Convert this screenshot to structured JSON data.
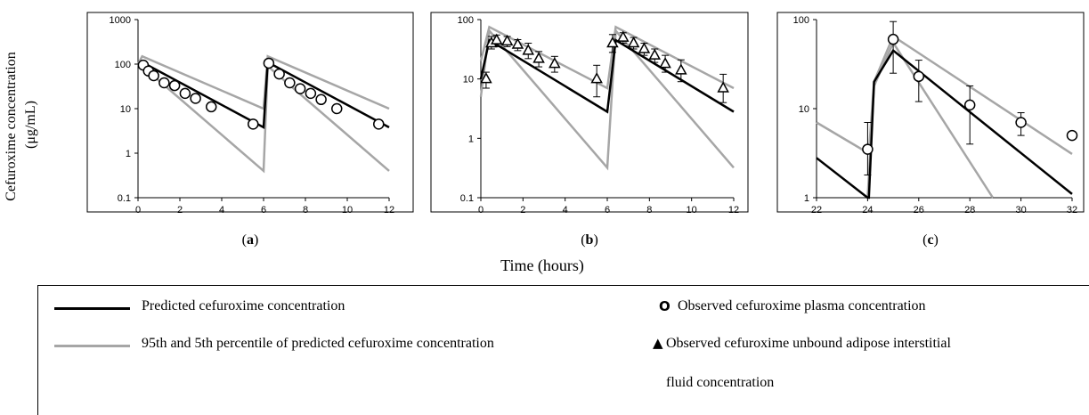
{
  "figure": {
    "y_axis_label_line1": "Cefuroxime concentration",
    "y_axis_label_line2": "(μg/mL)",
    "x_axis_label": "Time (hours)"
  },
  "legend": {
    "predicted": "Predicted cefuroxime concentration",
    "percentile": "95th and 5th percentile of predicted cefuroxime concentration",
    "plasma": "Observed cefuroxime plasma concentration",
    "adipose_line1": "Observed cefuroxime unbound adipose interstitial",
    "adipose_line2": "fluid concentration",
    "colors": {
      "predicted": "#000000",
      "percentile": "#a6a6a6"
    },
    "symbols": {
      "plasma": "circle",
      "adipose": "triangle"
    }
  },
  "chart_data": [
    {
      "type": "line",
      "panel_label": "a",
      "yscale": "log",
      "xlim": [
        0,
        12
      ],
      "ylim": [
        0.1,
        1000
      ],
      "x_ticks": [
        "0",
        "2",
        "4",
        "6",
        "8",
        "10",
        "12"
      ],
      "y_ticks": [
        "0.1",
        "1",
        "10",
        "100",
        "1000"
      ],
      "series": [
        {
          "style": "predicted",
          "points": [
            [
              0,
              100
            ],
            [
              0.2,
              110
            ],
            [
              6,
              3.8
            ],
            [
              6.2,
              110
            ],
            [
              12,
              3.8
            ]
          ]
        },
        {
          "style": "percentile",
          "points": [
            [
              0,
              100
            ],
            [
              0.2,
              150
            ],
            [
              6,
              10
            ],
            [
              6.2,
              150
            ],
            [
              12,
              10
            ]
          ]
        },
        {
          "style": "percentile",
          "points": [
            [
              0,
              100
            ],
            [
              0.2,
              90
            ],
            [
              6,
              0.4
            ],
            [
              6.2,
              90
            ],
            [
              12,
              0.4
            ]
          ]
        },
        {
          "style": "plasma",
          "points": [
            [
              0.25,
              95
            ],
            [
              0.5,
              70
            ],
            [
              0.75,
              55
            ],
            [
              1.25,
              38
            ],
            [
              1.75,
              33
            ],
            [
              2.25,
              22
            ],
            [
              2.75,
              17
            ],
            [
              3.5,
              11
            ],
            [
              5.5,
              4.5
            ],
            [
              6.25,
              105
            ],
            [
              6.75,
              60
            ],
            [
              7.25,
              38
            ],
            [
              7.75,
              28
            ],
            [
              8.25,
              22
            ],
            [
              8.75,
              16
            ],
            [
              9.5,
              10
            ],
            [
              11.5,
              4.5
            ]
          ]
        }
      ]
    },
    {
      "type": "line",
      "panel_label": "b",
      "yscale": "log",
      "xlim": [
        0,
        12
      ],
      "ylim": [
        0.1,
        100
      ],
      "x_ticks": [
        "0",
        "2",
        "4",
        "6",
        "8",
        "10",
        "12"
      ],
      "y_ticks": [
        "0.1",
        "1",
        "10",
        "100"
      ],
      "series": [
        {
          "style": "predicted",
          "points": [
            [
              0,
              10
            ],
            [
              0.4,
              45
            ],
            [
              6,
              2.8
            ],
            [
              6.4,
              45
            ],
            [
              12,
              2.8
            ]
          ]
        },
        {
          "style": "percentile",
          "points": [
            [
              0,
              20
            ],
            [
              0.4,
              75
            ],
            [
              6,
              7
            ],
            [
              6.4,
              75
            ],
            [
              12,
              7
            ]
          ]
        },
        {
          "style": "percentile",
          "points": [
            [
              0,
              5
            ],
            [
              0.4,
              65
            ],
            [
              6,
              0.32
            ],
            [
              6.4,
              65
            ],
            [
              12,
              0.32
            ]
          ]
        },
        {
          "style": "adipose",
          "points": [
            [
              0.25,
              10
            ],
            [
              0.5,
              40
            ],
            [
              0.75,
              45
            ],
            [
              1.25,
              43
            ],
            [
              1.75,
              38
            ],
            [
              2.25,
              30
            ],
            [
              2.75,
              22
            ],
            [
              3.5,
              18
            ],
            [
              5.5,
              10
            ],
            [
              6.25,
              40
            ],
            [
              6.75,
              50
            ],
            [
              7.25,
              40
            ],
            [
              7.75,
              32
            ],
            [
              8.25,
              25
            ],
            [
              8.75,
              18
            ],
            [
              9.5,
              14
            ],
            [
              11.5,
              7
            ]
          ],
          "errors": [
            [
              0.25,
              7,
              13
            ],
            [
              0.5,
              32,
              52
            ],
            [
              0.75,
              35,
              55
            ],
            [
              1.25,
              35,
              52
            ],
            [
              1.75,
              30,
              46
            ],
            [
              2.25,
              22,
              40
            ],
            [
              2.75,
              16,
              29
            ],
            [
              3.5,
              13,
              24
            ],
            [
              5.5,
              5,
              17
            ],
            [
              6.25,
              28,
              56
            ],
            [
              6.75,
              40,
              60
            ],
            [
              7.25,
              32,
              50
            ],
            [
              7.75,
              25,
              40
            ],
            [
              8.25,
              19,
              32
            ],
            [
              8.75,
              13,
              25
            ],
            [
              9.5,
              9,
              21
            ],
            [
              11.5,
              4,
              12
            ]
          ]
        }
      ]
    },
    {
      "type": "line",
      "panel_label": "c",
      "yscale": "log",
      "xlim": [
        22,
        32
      ],
      "ylim": [
        1,
        100
      ],
      "x_ticks": [
        "22",
        "24",
        "26",
        "28",
        "30",
        "32"
      ],
      "y_ticks": [
        "1",
        "10",
        "100"
      ],
      "series": [
        {
          "style": "predicted",
          "points": [
            [
              22,
              2.8
            ],
            [
              24,
              1
            ],
            [
              24.05,
              1
            ],
            [
              24.25,
              20
            ],
            [
              25,
              45
            ],
            [
              32,
              1.1
            ]
          ]
        },
        {
          "style": "percentile",
          "points": [
            [
              22,
              7
            ],
            [
              24,
              3.2
            ],
            [
              24.05,
              3.2
            ],
            [
              24.25,
              20
            ],
            [
              25,
              65
            ],
            [
              32,
              3.1
            ]
          ]
        },
        {
          "style": "percentile",
          "points": [
            [
              24,
              1
            ],
            [
              24.25,
              18
            ],
            [
              25,
              55
            ],
            [
              28.9,
              1
            ]
          ]
        },
        {
          "style": "plasma",
          "points": [
            [
              24,
              3.5
            ],
            [
              25,
              60
            ],
            [
              26,
              23
            ],
            [
              28,
              11
            ],
            [
              30,
              7
            ],
            [
              32,
              5
            ]
          ],
          "errors": [
            [
              24,
              1.8,
              7
            ],
            [
              25,
              25,
              95
            ],
            [
              26,
              12,
              35
            ],
            [
              28,
              4,
              18
            ],
            [
              30,
              5,
              9
            ]
          ]
        }
      ]
    }
  ]
}
